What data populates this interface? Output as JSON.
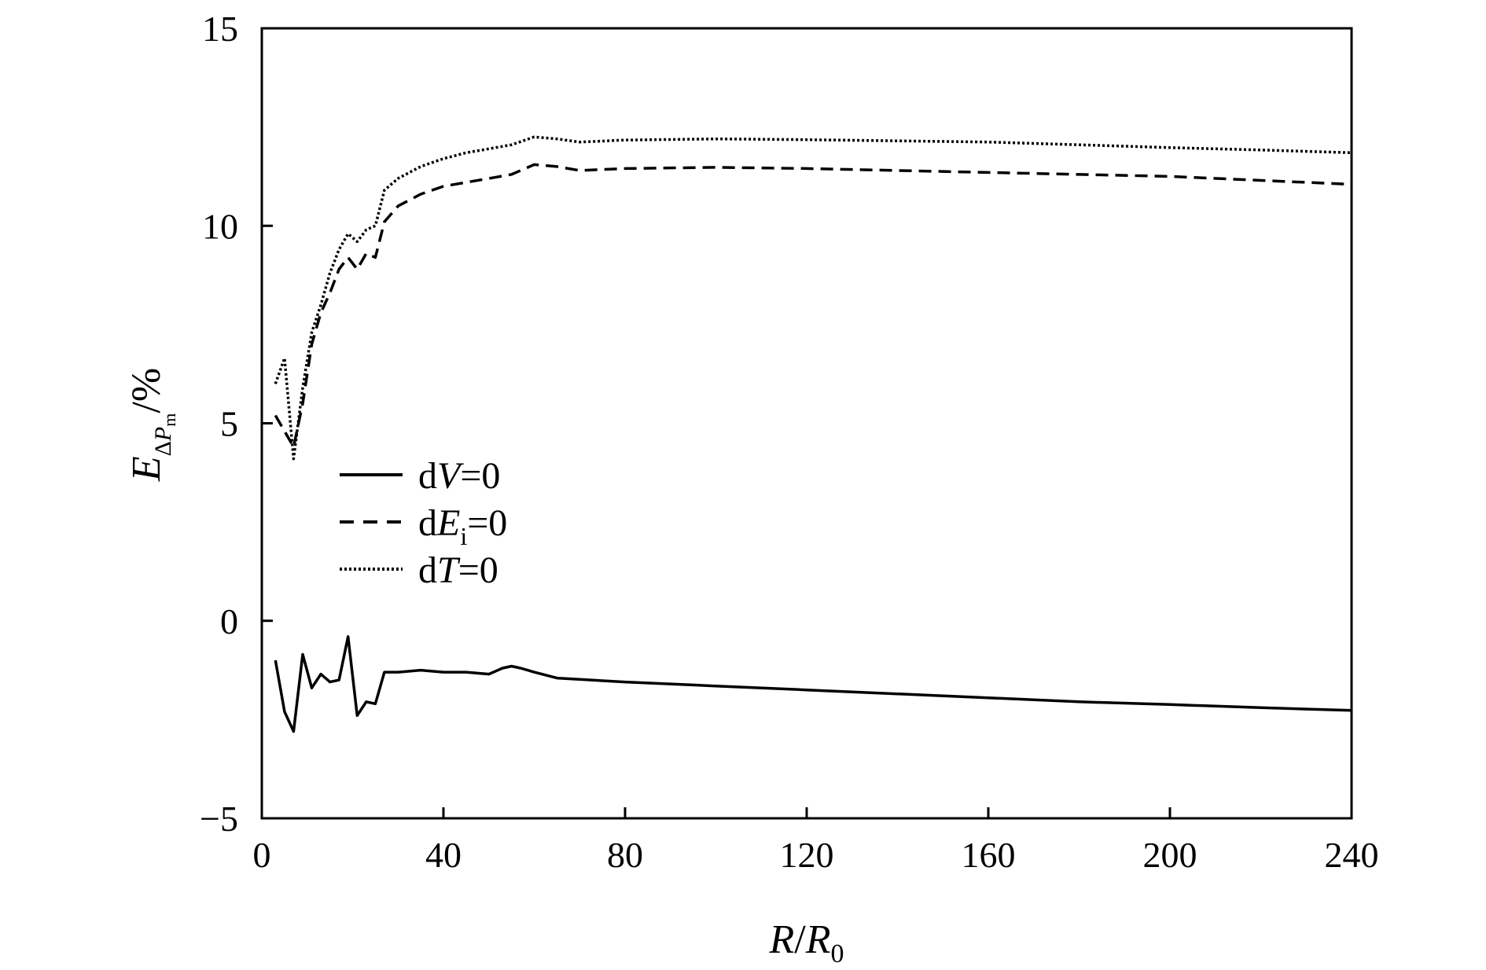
{
  "chart_data": {
    "type": "line",
    "title": "",
    "xlabel": {
      "main": "R",
      "slash": "/",
      "main2": "R",
      "sub2": "0"
    },
    "ylabel": {
      "main": "E",
      "sub_delta": "Δ",
      "sub_p": "P",
      "sub_m": "m",
      "unit": "/%"
    },
    "xlim": [
      0,
      240
    ],
    "ylim": [
      -5,
      15
    ],
    "xticks": [
      0,
      40,
      80,
      120,
      160,
      200,
      240
    ],
    "yticks": [
      -5,
      0,
      5,
      10,
      15
    ],
    "xtick_labels": [
      "0",
      "40",
      "80",
      "120",
      "160",
      "200",
      "240"
    ],
    "ytick_labels": [
      "−5",
      "0",
      "5",
      "10",
      "15"
    ],
    "grid": false,
    "legend_position": "center-left",
    "series": [
      {
        "name": "dV=0",
        "legend": {
          "prefix": "d",
          "var": "V",
          "sub": "",
          "suffix": "=0"
        },
        "style": "solid",
        "color": "#000000",
        "x": [
          3,
          5,
          7,
          9,
          11,
          13,
          15,
          17,
          19,
          21,
          23,
          25,
          27,
          30,
          35,
          40,
          45,
          50,
          53,
          55,
          57,
          60,
          65,
          80,
          100,
          120,
          140,
          160,
          180,
          200,
          220,
          240
        ],
        "y": [
          -1.0,
          -2.3,
          -2.8,
          -0.85,
          -1.7,
          -1.35,
          -1.55,
          -1.5,
          -0.4,
          -2.4,
          -2.05,
          -2.1,
          -1.3,
          -1.3,
          -1.25,
          -1.3,
          -1.3,
          -1.35,
          -1.2,
          -1.15,
          -1.2,
          -1.3,
          -1.45,
          -1.55,
          -1.65,
          -1.75,
          -1.85,
          -1.95,
          -2.05,
          -2.12,
          -2.2,
          -2.27
        ]
      },
      {
        "name": "dEi=0",
        "legend": {
          "prefix": "d",
          "var": "E",
          "sub": "i",
          "suffix": "=0"
        },
        "style": "dashed",
        "color": "#000000",
        "x": [
          3,
          5,
          7,
          9,
          11,
          13,
          15,
          17,
          19,
          21,
          23,
          25,
          27,
          30,
          35,
          40,
          45,
          50,
          55,
          60,
          65,
          70,
          80,
          100,
          120,
          140,
          160,
          180,
          200,
          220,
          240
        ],
        "y": [
          5.2,
          4.8,
          4.4,
          5.5,
          7.0,
          7.8,
          8.3,
          8.9,
          9.2,
          8.9,
          9.3,
          9.2,
          10.1,
          10.5,
          10.8,
          11.0,
          11.1,
          11.2,
          11.3,
          11.55,
          11.5,
          11.4,
          11.45,
          11.48,
          11.45,
          11.4,
          11.35,
          11.3,
          11.25,
          11.15,
          11.05
        ]
      },
      {
        "name": "dT=0",
        "legend": {
          "prefix": "d",
          "var": "T",
          "sub": "",
          "suffix": "=0"
        },
        "style": "dotted",
        "color": "#000000",
        "x": [
          3,
          5,
          7,
          9,
          11,
          13,
          15,
          17,
          19,
          21,
          23,
          25,
          27,
          30,
          35,
          40,
          45,
          50,
          55,
          60,
          65,
          70,
          80,
          100,
          120,
          140,
          160,
          180,
          200,
          220,
          240
        ],
        "y": [
          6.0,
          6.65,
          4.1,
          5.9,
          7.3,
          8.0,
          8.8,
          9.4,
          9.8,
          9.6,
          9.9,
          10.0,
          10.9,
          11.2,
          11.5,
          11.7,
          11.85,
          11.95,
          12.05,
          12.25,
          12.2,
          12.12,
          12.17,
          12.2,
          12.18,
          12.15,
          12.12,
          12.05,
          11.98,
          11.92,
          11.85
        ]
      }
    ]
  }
}
